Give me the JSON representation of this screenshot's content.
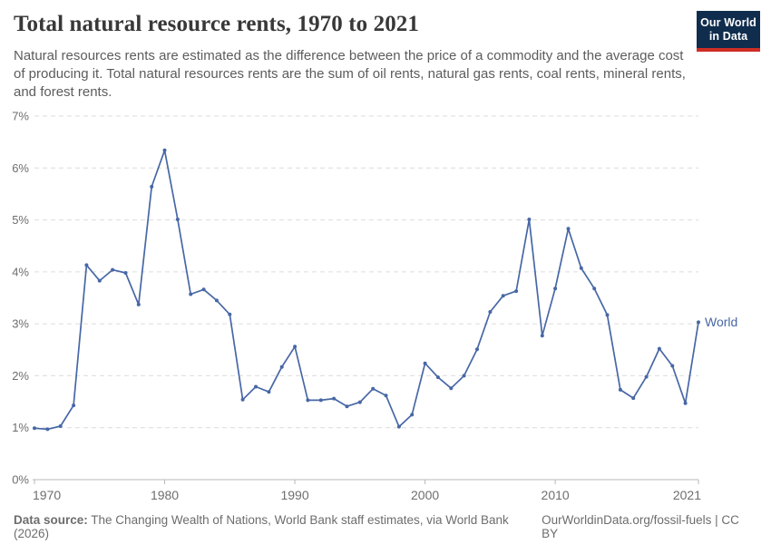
{
  "header": {
    "title": "Total natural resource rents, 1970 to 2021",
    "subtitle": "Natural resources rents are estimated as the difference between the price of a commodity and the average cost of producing it. Total natural resources rents are the sum of oil rents, natural gas rents, coal rents, mineral rents, and forest rents.",
    "logo": {
      "line1": "Our World",
      "line2": "in Data",
      "bg_color": "#102d4e",
      "accent_color": "#cf2d24"
    }
  },
  "chart_data": {
    "type": "line",
    "title": "Total natural resource rents, 1970 to 2021",
    "xlabel": "",
    "ylabel": "",
    "xlim": [
      1970,
      2021
    ],
    "ylim": [
      0,
      7
    ],
    "x_ticks": [
      1970,
      1980,
      1990,
      2000,
      2010,
      2021
    ],
    "y_ticks": [
      0,
      1,
      2,
      3,
      4,
      5,
      6,
      7
    ],
    "y_tick_suffix": "%",
    "grid": "horizontal-dashed",
    "legend": "end-of-line-label",
    "x": [
      1970,
      1971,
      1972,
      1973,
      1974,
      1975,
      1976,
      1977,
      1978,
      1979,
      1980,
      1981,
      1982,
      1983,
      1984,
      1985,
      1986,
      1987,
      1988,
      1989,
      1990,
      1991,
      1992,
      1993,
      1994,
      1995,
      1996,
      1997,
      1998,
      1999,
      2000,
      2001,
      2002,
      2003,
      2004,
      2005,
      2006,
      2007,
      2008,
      2009,
      2010,
      2011,
      2012,
      2013,
      2014,
      2015,
      2016,
      2017,
      2018,
      2019,
      2020,
      2021
    ],
    "series": [
      {
        "name": "World",
        "color": "#4767a5",
        "values": [
          0.99,
          0.97,
          1.03,
          1.43,
          4.13,
          3.83,
          4.04,
          3.98,
          3.37,
          5.64,
          6.34,
          5.01,
          3.57,
          3.66,
          3.45,
          3.18,
          1.54,
          1.79,
          1.69,
          2.17,
          2.56,
          1.53,
          1.53,
          1.56,
          1.41,
          1.49,
          1.75,
          1.62,
          1.02,
          1.25,
          2.24,
          1.97,
          1.76,
          2.0,
          2.51,
          3.23,
          3.54,
          3.63,
          5.01,
          2.77,
          3.68,
          4.83,
          4.07,
          3.68,
          3.17,
          1.73,
          1.57,
          1.98,
          2.52,
          2.19,
          1.47,
          3.03
        ]
      }
    ],
    "style": {
      "gridline_color": "#dcdcdc",
      "axis_color": "#b8b8b8",
      "tick_label_color": "#6e6e6e"
    }
  },
  "footer": {
    "source_label": "Data source:",
    "source_text": "The Changing Wealth of Nations, World Bank staff estimates, via World Bank (2026)",
    "credit": "OurWorldinData.org/fossil-fuels | CC BY"
  }
}
